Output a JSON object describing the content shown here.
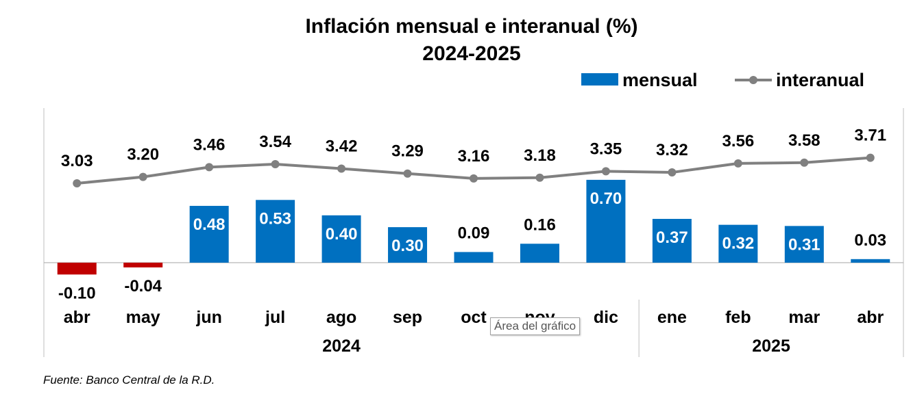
{
  "chart_data": {
    "type": "bar+line",
    "title": "Inflación mensual e interanual (%)",
    "subtitle": "2024-2025",
    "categories": [
      "abr",
      "may",
      "jun",
      "jul",
      "ago",
      "sep",
      "oct",
      "nov",
      "dic",
      "ene",
      "feb",
      "mar",
      "abr"
    ],
    "year_groups": [
      {
        "label": "2024",
        "count": 9
      },
      {
        "label": "2025",
        "count": 4
      }
    ],
    "series": [
      {
        "name": "mensual",
        "type": "bar",
        "values": [
          -0.1,
          -0.04,
          0.48,
          0.53,
          0.4,
          0.3,
          0.09,
          0.16,
          0.7,
          0.37,
          0.32,
          0.31,
          0.03
        ],
        "labels": [
          "-0.10",
          "-0.04",
          "0.48",
          "0.53",
          "0.40",
          "0.30",
          "0.09",
          "0.16",
          "0.70",
          "0.37",
          "0.32",
          "0.31",
          "0.03"
        ]
      },
      {
        "name": "interanual",
        "type": "line",
        "values": [
          3.03,
          3.2,
          3.46,
          3.54,
          3.42,
          3.29,
          3.16,
          3.18,
          3.35,
          3.32,
          3.56,
          3.58,
          3.71
        ],
        "labels": [
          "3.03",
          "3.20",
          "3.46",
          "3.54",
          "3.42",
          "3.29",
          "3.16",
          "3.18",
          "3.35",
          "3.32",
          "3.56",
          "3.58",
          "3.71"
        ]
      }
    ],
    "legend_position": "top-right",
    "grid": false,
    "colors": {
      "positive_bar": "#0070C0",
      "negative_bar": "#C00000",
      "line": "#808080"
    }
  },
  "source_note": "Fuente: Banco Central de la R.D.",
  "tooltip_text": "Área del gráfico"
}
